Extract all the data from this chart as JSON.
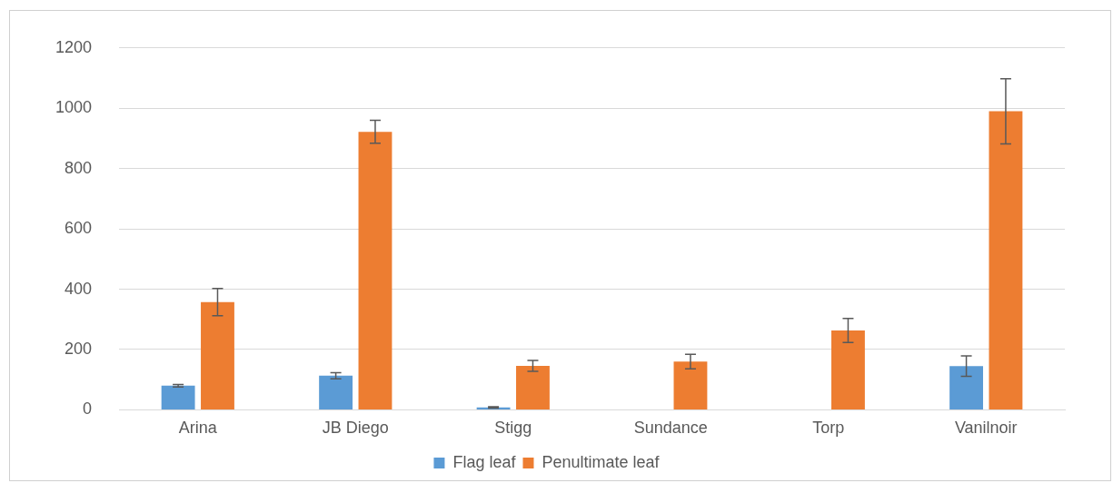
{
  "chart_data": {
    "type": "bar",
    "categories": [
      "Arina",
      "JB Diego",
      "Stigg",
      "Sundance",
      "Torp",
      "Vanilnoir"
    ],
    "series": [
      {
        "name": "Flag leaf",
        "color": "#5b9bd5",
        "values": [
          80,
          113,
          8,
          null,
          null,
          145
        ],
        "errors": [
          4,
          10,
          2,
          null,
          null,
          34
        ]
      },
      {
        "name": "Penultimate leaf",
        "color": "#ed7d31",
        "values": [
          357,
          922,
          146,
          160,
          263,
          990
        ],
        "errors": [
          45,
          38,
          18,
          24,
          40,
          108
        ]
      }
    ],
    "ylim": [
      0,
      1200
    ],
    "yticks": [
      0,
      200,
      400,
      600,
      800,
      1000,
      1200
    ],
    "grid": "y",
    "legend": "bottom"
  }
}
